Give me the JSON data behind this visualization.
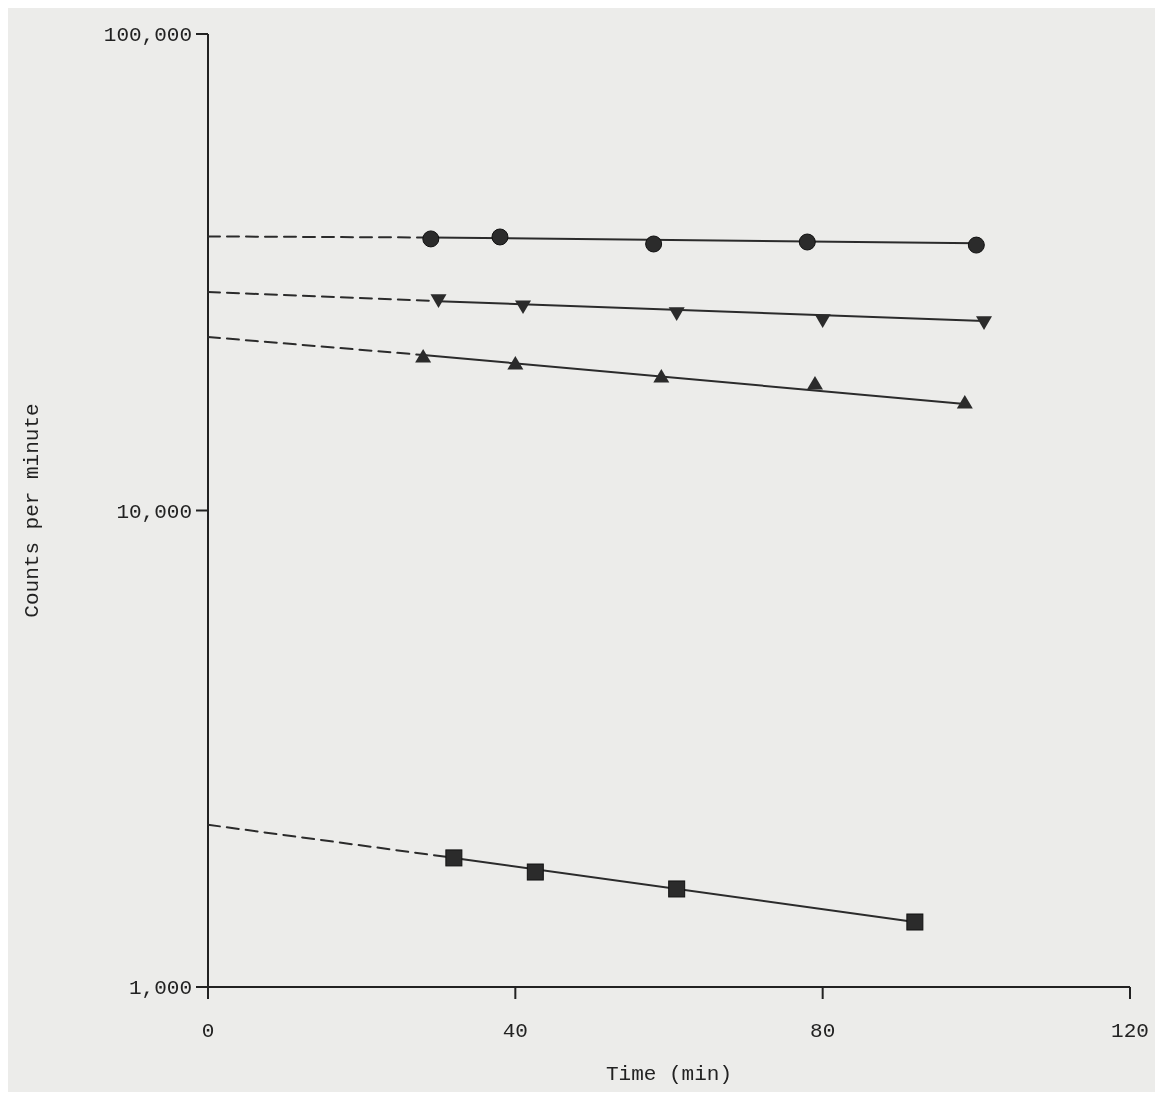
{
  "chart_data": {
    "type": "scatter",
    "xlabel": "Time (min)",
    "ylabel": "Counts per minute",
    "log": "y",
    "grid": false,
    "xlim": [
      0,
      120
    ],
    "xticks": [
      0,
      40,
      80,
      120
    ],
    "ylim": [
      1000,
      100000
    ],
    "yticks": [
      {
        "value": 1000,
        "label": "1,000"
      },
      {
        "value": 10000,
        "label": "10,000"
      },
      {
        "value": 100000,
        "label": "100,000"
      }
    ],
    "series": [
      {
        "type": "line",
        "color": "#2b2b2b",
        "x": [
          0,
          29
        ],
        "values": [
          37600,
          37400
        ],
        "marker": "none",
        "line_style": "dashed"
      },
      {
        "type": "line",
        "color": "#2b2b2b",
        "x": [
          29,
          100
        ],
        "values": [
          37400,
          36400
        ],
        "marker": "none",
        "line_style": "solid"
      },
      {
        "color": "#2b2b2b",
        "x": [
          29,
          38,
          58,
          78,
          100
        ],
        "values": [
          37150,
          37500,
          36250,
          36600,
          36060
        ],
        "marker": "circle"
      },
      {
        "type": "line",
        "color": "#2b2b2b",
        "x": [
          0,
          30
        ],
        "values": [
          28740,
          27500
        ],
        "marker": "none",
        "line_style": "dashed"
      },
      {
        "type": "line",
        "color": "#2b2b2b",
        "x": [
          30,
          101
        ],
        "values": [
          27500,
          24990
        ],
        "marker": "none",
        "line_style": "solid"
      },
      {
        "color": "#2b2b2b",
        "x": [
          30,
          41,
          61,
          80,
          101
        ],
        "values": [
          27670,
          26860,
          25980,
          25110,
          24870
        ],
        "marker": "triangle-down"
      },
      {
        "type": "line",
        "color": "#2b2b2b",
        "x": [
          0,
          28
        ],
        "values": [
          23130,
          21200
        ],
        "marker": "none",
        "line_style": "dashed"
      },
      {
        "type": "line",
        "color": "#2b2b2b",
        "x": [
          28,
          98.5
        ],
        "values": [
          21200,
          16730
        ],
        "marker": "none",
        "line_style": "solid"
      },
      {
        "color": "#2b2b2b",
        "x": [
          28,
          40,
          59,
          79,
          98.5
        ],
        "values": [
          21000,
          20300,
          19060,
          18430,
          16810
        ],
        "marker": "triangle"
      },
      {
        "type": "line",
        "color": "#2b2b2b",
        "x": [
          0,
          32
        ],
        "values": [
          2190,
          1866
        ],
        "marker": "none",
        "line_style": "dashed"
      },
      {
        "type": "line",
        "color": "#2b2b2b",
        "x": [
          32,
          92
        ],
        "values": [
          1866,
          1369
        ],
        "marker": "none",
        "line_style": "solid"
      },
      {
        "color": "#2b2b2b",
        "x": [
          32,
          42.6,
          61,
          92
        ],
        "values": [
          1866,
          1743,
          1606,
          1369
        ],
        "marker": "square"
      }
    ]
  }
}
